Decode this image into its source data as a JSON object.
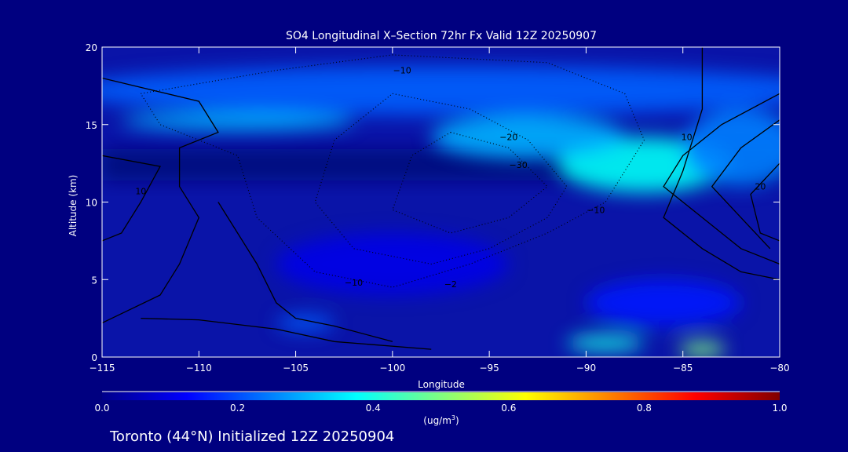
{
  "chart_data": {
    "type": "heatmap",
    "title": "SO4 Longitudinal X–Section 72hr  Fx Valid 12Z 20250907",
    "xlabel": "Longitude",
    "ylabel": "Altitude (km)",
    "xlim": [
      -115,
      -80
    ],
    "ylim": [
      0,
      20
    ],
    "xticks": [
      -115,
      -110,
      -105,
      -100,
      -95,
      -90,
      -85,
      -80
    ],
    "xtick_labels": [
      "−115",
      "−110",
      "−105",
      "−100",
      "−95",
      "−90",
      "−85",
      "−80"
    ],
    "yticks": [
      0,
      5,
      10,
      15,
      20
    ],
    "ytick_labels": [
      "0",
      "5",
      "10",
      "15",
      "20"
    ],
    "colorbar": {
      "ticks": [
        "0.0",
        "0.2",
        "0.4",
        "0.6",
        "0.8",
        "1.0"
      ],
      "range": [
        0,
        1
      ],
      "units_label": "(ug/m",
      "units_sup": "3",
      "units_close": ")",
      "colors": [
        "#00008a",
        "#0000ff",
        "#0080ff",
        "#00ffff",
        "#80ff80",
        "#ffff00",
        "#ff8000",
        "#ff0000",
        "#800000"
      ]
    },
    "field_regions": [
      {
        "lon": -97,
        "alt": 17.2,
        "rlon": 20,
        "ralt": 1.6,
        "value": 0.22
      },
      {
        "lon": -108,
        "alt": 15.2,
        "rlon": 6,
        "ralt": 0.6,
        "value": 0.3
      },
      {
        "lon": -87,
        "alt": 12.4,
        "rlon": 4.5,
        "ralt": 1.8,
        "value": 0.38
      },
      {
        "lon": -93,
        "alt": 14.2,
        "rlon": 5,
        "ralt": 1.4,
        "value": 0.3
      },
      {
        "lon": -82,
        "alt": 13.5,
        "rlon": 3,
        "ralt": 2.5,
        "value": 0.25
      },
      {
        "lon": -89,
        "alt": 0.9,
        "rlon": 2,
        "ralt": 0.5,
        "value": 0.4
      },
      {
        "lon": -84,
        "alt": 0.5,
        "rlon": 1.2,
        "ralt": 0.5,
        "value": 0.5
      },
      {
        "lon": -104.5,
        "alt": 2.2,
        "rlon": 1.5,
        "ralt": 0.5,
        "value": 0.22
      },
      {
        "lon": -86,
        "alt": 3.5,
        "rlon": 4,
        "ralt": 1.5,
        "value": 0.15
      },
      {
        "lon": -100,
        "alt": 6,
        "rlon": 6,
        "ralt": 2,
        "value": 0.1
      }
    ],
    "contours": [
      {
        "style": "solid",
        "points": [
          [
            -115,
            18
          ],
          [
            -110,
            16.5
          ],
          [
            -109,
            14.5
          ],
          [
            -111,
            13.5
          ],
          [
            -111,
            11
          ],
          [
            -110,
            9
          ],
          [
            -111,
            6
          ],
          [
            -112,
            4
          ],
          [
            -115,
            2.2
          ]
        ]
      },
      {
        "style": "solid",
        "points": [
          [
            -115,
            13
          ],
          [
            -112,
            12.3
          ],
          [
            -113,
            10
          ],
          [
            -114,
            8
          ],
          [
            -115,
            7.5
          ]
        ]
      },
      {
        "style": "solid",
        "points": [
          [
            -109,
            10
          ],
          [
            -108,
            8
          ],
          [
            -107,
            6
          ],
          [
            -106,
            3.5
          ],
          [
            -105,
            2.5
          ],
          [
            -103,
            2
          ],
          [
            -100,
            1
          ]
        ]
      },
      {
        "style": "solid",
        "points": [
          [
            -113,
            2.5
          ],
          [
            -110,
            2.4
          ],
          [
            -106,
            1.8
          ],
          [
            -103,
            1
          ],
          [
            -98,
            0.5
          ]
        ]
      },
      {
        "style": "solid",
        "points": [
          [
            -84,
            20
          ],
          [
            -84,
            16
          ],
          [
            -85,
            12
          ],
          [
            -86,
            9
          ],
          [
            -84,
            7
          ],
          [
            -82,
            5.5
          ],
          [
            -80,
            5
          ]
        ]
      },
      {
        "style": "solid",
        "points": [
          [
            -80,
            17
          ],
          [
            -83,
            15
          ],
          [
            -85,
            13
          ],
          [
            -86,
            11
          ],
          [
            -84,
            9
          ],
          [
            -82,
            7
          ],
          [
            -80,
            6
          ]
        ]
      },
      {
        "style": "solid",
        "points": [
          [
            -80,
            15.3
          ],
          [
            -82,
            13.5
          ],
          [
            -83.5,
            11
          ],
          [
            -82,
            9
          ],
          [
            -80.5,
            7
          ]
        ]
      },
      {
        "style": "solid",
        "points": [
          [
            -80,
            12.5
          ],
          [
            -81.5,
            10.5
          ],
          [
            -81,
            8
          ],
          [
            -80,
            7.5
          ]
        ]
      },
      {
        "style": "dotted",
        "points": [
          [
            -113,
            17
          ],
          [
            -106,
            18.5
          ],
          [
            -100,
            19.5
          ],
          [
            -92,
            19
          ],
          [
            -88,
            17
          ],
          [
            -87,
            14
          ],
          [
            -89,
            10
          ],
          [
            -92,
            8
          ],
          [
            -96,
            6
          ],
          [
            -100,
            4.5
          ],
          [
            -104,
            5.5
          ],
          [
            -107,
            9
          ],
          [
            -108,
            13
          ],
          [
            -112,
            15
          ],
          [
            -113,
            17
          ]
        ]
      },
      {
        "style": "dotted",
        "points": [
          [
            -100,
            17
          ],
          [
            -96,
            16
          ],
          [
            -93,
            14
          ],
          [
            -91,
            11
          ],
          [
            -92,
            9
          ],
          [
            -95,
            7
          ],
          [
            -98,
            6
          ],
          [
            -102,
            7
          ],
          [
            -104,
            10
          ],
          [
            -103,
            14
          ],
          [
            -100,
            17
          ]
        ]
      },
      {
        "style": "dotted",
        "points": [
          [
            -97,
            14.5
          ],
          [
            -94,
            13.5
          ],
          [
            -92,
            11
          ],
          [
            -94,
            9
          ],
          [
            -97,
            8
          ],
          [
            -100,
            9.5
          ],
          [
            -99,
            13
          ],
          [
            -97,
            14.5
          ]
        ]
      }
    ],
    "contour_labels": [
      {
        "text": "−10",
        "lon": -99.5,
        "alt": 18.3
      },
      {
        "text": "−20",
        "lon": -94,
        "alt": 14
      },
      {
        "text": "−30",
        "lon": -93.5,
        "alt": 12.2
      },
      {
        "text": "−10",
        "lon": -89.5,
        "alt": 9.3
      },
      {
        "text": "10",
        "lon": -84.8,
        "alt": 14
      },
      {
        "text": "20",
        "lon": -81,
        "alt": 10.8
      },
      {
        "text": "10",
        "lon": -113,
        "alt": 10.5
      },
      {
        "text": "−10",
        "lon": -102,
        "alt": 4.6
      },
      {
        "text": "−2",
        "lon": -97,
        "alt": 4.5
      }
    ]
  },
  "footer": "Toronto (44°N) Initialized 12Z 20250904"
}
